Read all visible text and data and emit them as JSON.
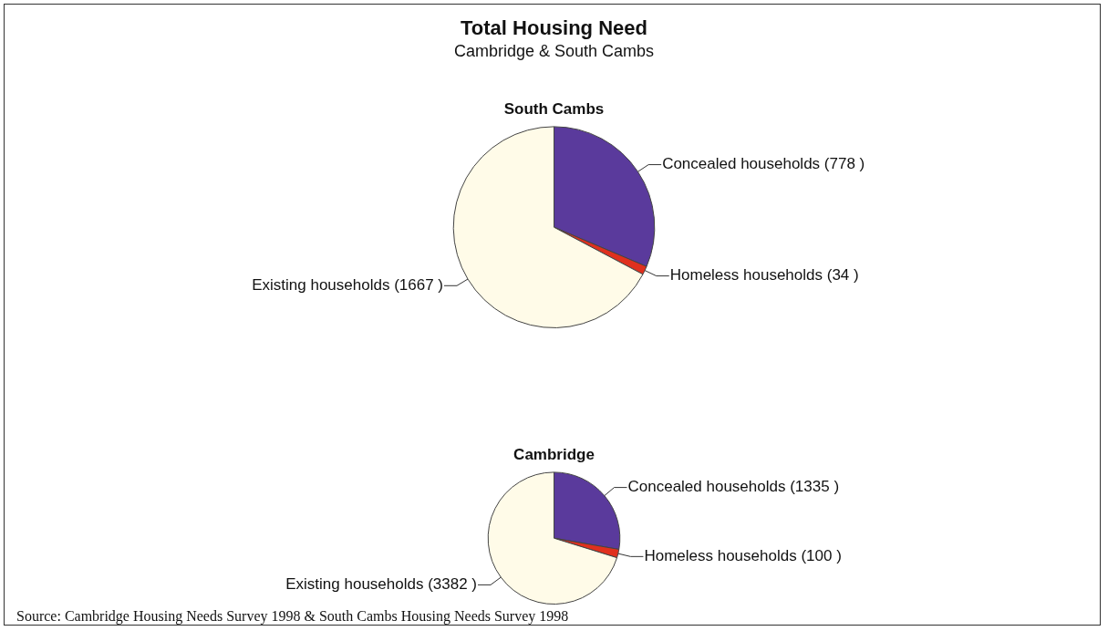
{
  "chart_data": [
    {
      "type": "other",
      "title": "Total Housing Need",
      "subtitle": "Cambridge & South Cambs"
    },
    {
      "type": "pie",
      "title": "South Cambs",
      "categories": [
        "Concealed households",
        "Homeless households",
        "Existing households"
      ],
      "values": [
        778,
        34,
        1667
      ],
      "colors": [
        "#5a3a9c",
        "#e0301e",
        "#fffbe8"
      ],
      "value_labels": [
        "(778 )",
        "(34 )",
        "(1667 )"
      ]
    },
    {
      "type": "pie",
      "title": "Cambridge",
      "categories": [
        "Concealed households",
        "Homeless households",
        "Existing households"
      ],
      "values": [
        1335,
        100,
        3382
      ],
      "colors": [
        "#5a3a9c",
        "#e0301e",
        "#fffbe8"
      ],
      "value_labels": [
        "(1335 )",
        "(100 )",
        "(3382 )"
      ],
      "annotations": [
        "Source: Cambridge Housing Needs Survey 1998 & South Cambs Housing Needs Survey 1998"
      ]
    }
  ]
}
